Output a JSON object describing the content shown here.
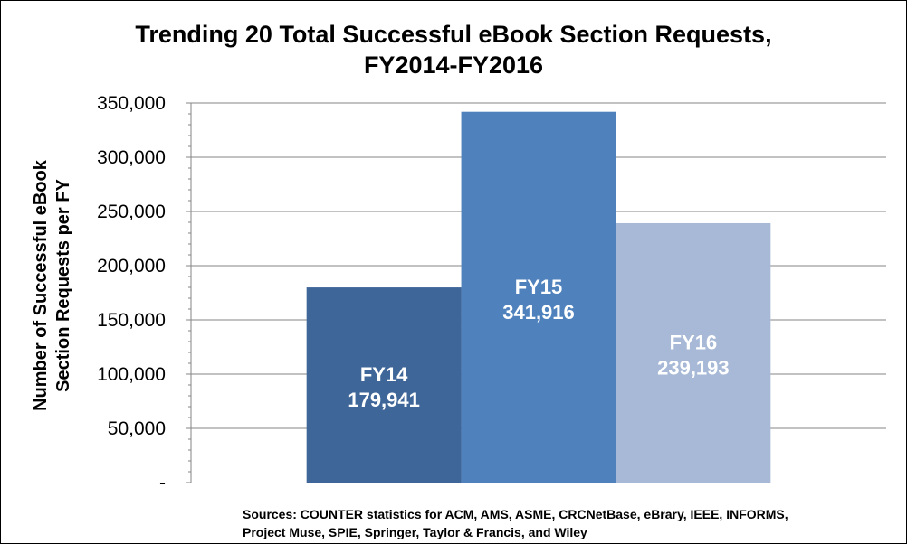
{
  "chart_data": {
    "type": "bar",
    "title": [
      "Trending 20 Total Successful eBook Section Requests,",
      "FY2014-FY2016"
    ],
    "ylabel": [
      "Number of Successful eBook",
      "Section Requests per FY"
    ],
    "xlabel": "",
    "categories": [
      "FY14",
      "FY15",
      "FY16"
    ],
    "values": [
      179941,
      341916,
      239193
    ],
    "data_labels": [
      "179,941",
      "341,916",
      "239,193"
    ],
    "colors": [
      "#3f6699",
      "#4f81bd",
      "#a7b9d6"
    ],
    "ylim": [
      0,
      350000
    ],
    "y_ticks": [
      {
        "value": 0,
        "label": "-"
      },
      {
        "value": 50000,
        "label": "50,000"
      },
      {
        "value": 100000,
        "label": "100,000"
      },
      {
        "value": 150000,
        "label": "150,000"
      },
      {
        "value": 200000,
        "label": "200,000"
      },
      {
        "value": 250000,
        "label": "250,000"
      },
      {
        "value": 300000,
        "label": "300,000"
      },
      {
        "value": 350000,
        "label": "350,000"
      }
    ],
    "grid": true,
    "legend": "none",
    "sources": [
      "Sources:  COUNTER statistics for ACM, AMS, ASME, CRCNetBase, eBrary, IEEE, INFORMS,",
      "Project Muse, SPIE, Springer, Taylor & Francis, and Wiley"
    ]
  }
}
